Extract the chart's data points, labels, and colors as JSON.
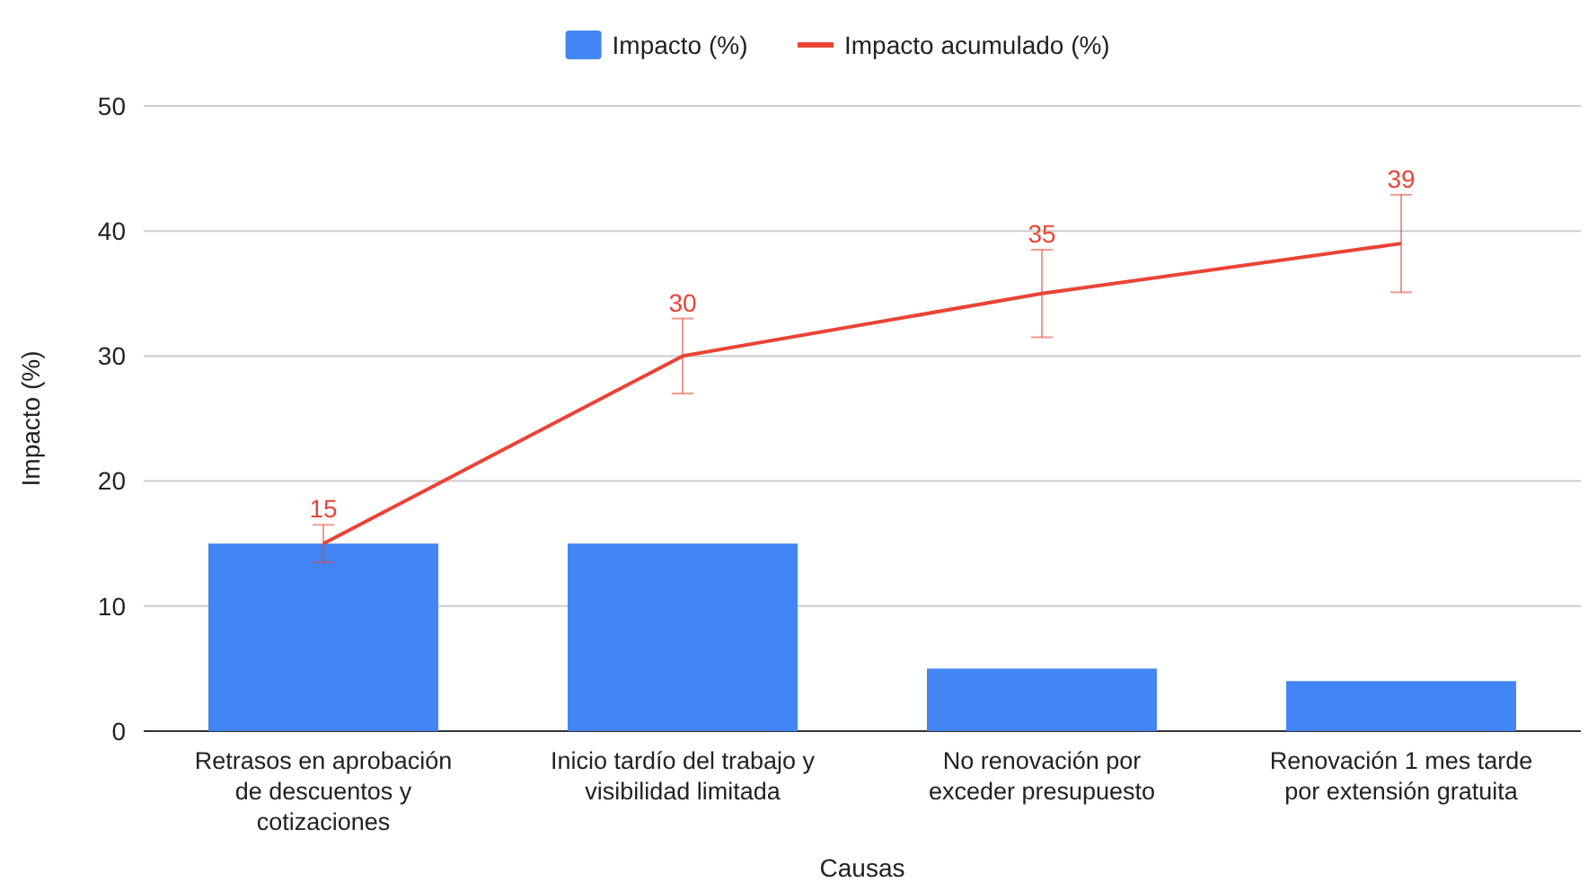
{
  "chart_data": {
    "type": "bar",
    "xlabel": "Causas",
    "ylabel": "Impacto (%)",
    "categories": [
      "Retrasos en aprobación de descuentos y cotizaciones",
      "Inicio tardío del trabajo y visibilidad limitada",
      "No renovación por exceder presupuesto",
      "Renovación 1 mes tarde por extensión gratuita"
    ],
    "series": [
      {
        "name": "Impacto (%)",
        "color": "#4285f4",
        "values": [
          15,
          15,
          5,
          4
        ]
      },
      {
        "name": "Impacto acumulado (%)",
        "type": "line",
        "color": "#ea4335",
        "values": [
          15,
          30,
          35,
          39
        ],
        "errors": [
          1.5,
          3,
          3.5,
          3.9
        ],
        "value_labels": [
          "15",
          "30",
          "35",
          "39"
        ]
      }
    ],
    "ylim": [
      0,
      50
    ],
    "yticks": [
      0,
      10,
      20,
      30,
      40,
      50
    ],
    "grid": "y",
    "legend": "top",
    "marker": "none",
    "line_style": "solid"
  }
}
